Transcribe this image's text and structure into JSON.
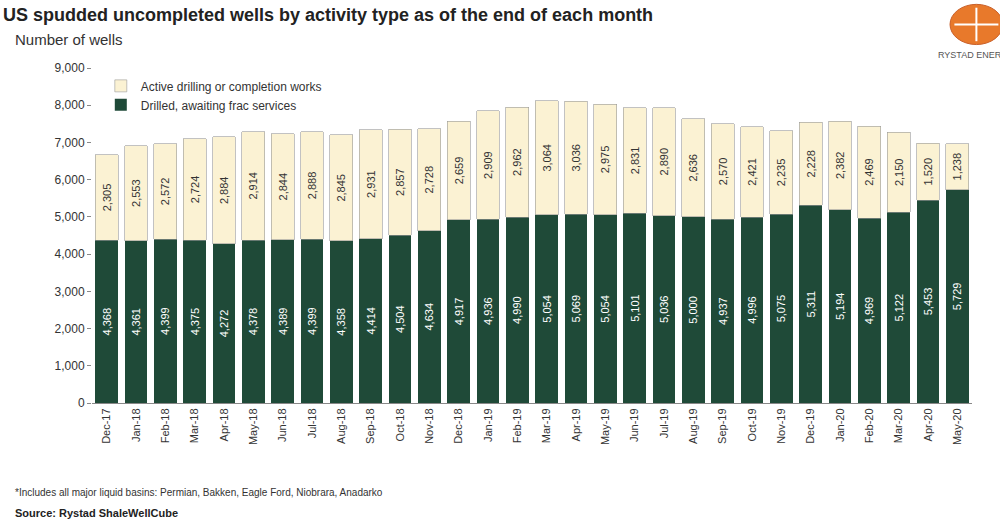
{
  "chart_data": {
    "type": "bar",
    "title": "US spudded uncompleted wells by activity type as of the end of each month",
    "subtitle": "Number of wells",
    "annotations": [
      "*Includes all major liquid basins: Permian, Bakken, Eagle Ford, Niobrara, Anadarko",
      "Source: Rystad ShaleWellCube",
      "RYSTAD ENERGY"
    ],
    "categories": [
      "Dec-17",
      "Jan-18",
      "Feb-18",
      "Mar-18",
      "Apr-18",
      "May-18",
      "Jun-18",
      "Jul-18",
      "Aug-18",
      "Sep-18",
      "Oct-18",
      "Nov-18",
      "Dec-18",
      "Jan-19",
      "Feb-19",
      "Mar-19",
      "Apr-19",
      "May-19",
      "Jun-19",
      "Jul-19",
      "Aug-19",
      "Sep-19",
      "Oct-19",
      "Nov-19",
      "Dec-19",
      "Jan-20",
      "Feb-20",
      "Mar-20",
      "Apr-20",
      "May-20"
    ],
    "series": [
      {
        "name": "Drilled, awaiting frac services",
        "color": "#1f4a38",
        "values": [
          4368,
          4361,
          4399,
          4375,
          4272,
          4378,
          4389,
          4399,
          4358,
          4414,
          4504,
          4634,
          4917,
          4936,
          4990,
          5054,
          5069,
          5054,
          5101,
          5036,
          5000,
          4937,
          4996,
          5075,
          5311,
          5194,
          4969,
          5122,
          5453,
          5729
        ],
        "value_labels": [
          "4,368",
          "4,361",
          "4,399",
          "4,375",
          "4,272",
          "4,378",
          "4,389",
          "4,399",
          "4,358",
          "4,414",
          "4,504",
          "4,634",
          "4,917",
          "4,936",
          "4,990",
          "5,054",
          "5,069",
          "5,054",
          "5,101",
          "5,036",
          "5,000",
          "4,937",
          "4,996",
          "5,075",
          "5,311",
          "5,194",
          "4,969",
          "5,122",
          "5,453",
          "5,729"
        ]
      },
      {
        "name": "Active drilling or completion works",
        "color": "#fbf2d3",
        "values": [
          2305,
          2553,
          2572,
          2724,
          2884,
          2914,
          2844,
          2888,
          2845,
          2931,
          2857,
          2728,
          2659,
          2909,
          2962,
          3064,
          3036,
          2975,
          2831,
          2890,
          2636,
          2570,
          2421,
          2235,
          2228,
          2382,
          2469,
          2150,
          1520,
          1238
        ],
        "value_labels": [
          "2,305",
          "2,553",
          "2,572",
          "2,724",
          "2,884",
          "2,914",
          "2,844",
          "2,888",
          "2,845",
          "2,931",
          "2,857",
          "2,728",
          "2,659",
          "2,909",
          "2,962",
          "3,064",
          "3,036",
          "2,975",
          "2,831",
          "2,890",
          "2,636",
          "2,570",
          "2,421",
          "2,235",
          "2,228",
          "2,382",
          "2,469",
          "2,150",
          "1,520",
          "1,238"
        ]
      }
    ],
    "ylim": [
      0,
      9000
    ],
    "yticks": [
      0,
      {
        "value": 1000,
        "label": "1,000"
      },
      {
        "value": 2000,
        "label": "2,000"
      },
      {
        "value": 3000,
        "label": "3,000"
      },
      {
        "value": 4000,
        "label": "4,000"
      },
      {
        "value": 5000,
        "label": "5,000"
      },
      {
        "value": 6000,
        "label": "6,000"
      },
      {
        "value": 7000,
        "label": "7,000"
      },
      {
        "value": 8000,
        "label": "8,000"
      },
      {
        "value": 9000,
        "label": "9,000"
      }
    ],
    "stacked": true,
    "data_labels": true,
    "grid": false,
    "legend": "top-left"
  }
}
